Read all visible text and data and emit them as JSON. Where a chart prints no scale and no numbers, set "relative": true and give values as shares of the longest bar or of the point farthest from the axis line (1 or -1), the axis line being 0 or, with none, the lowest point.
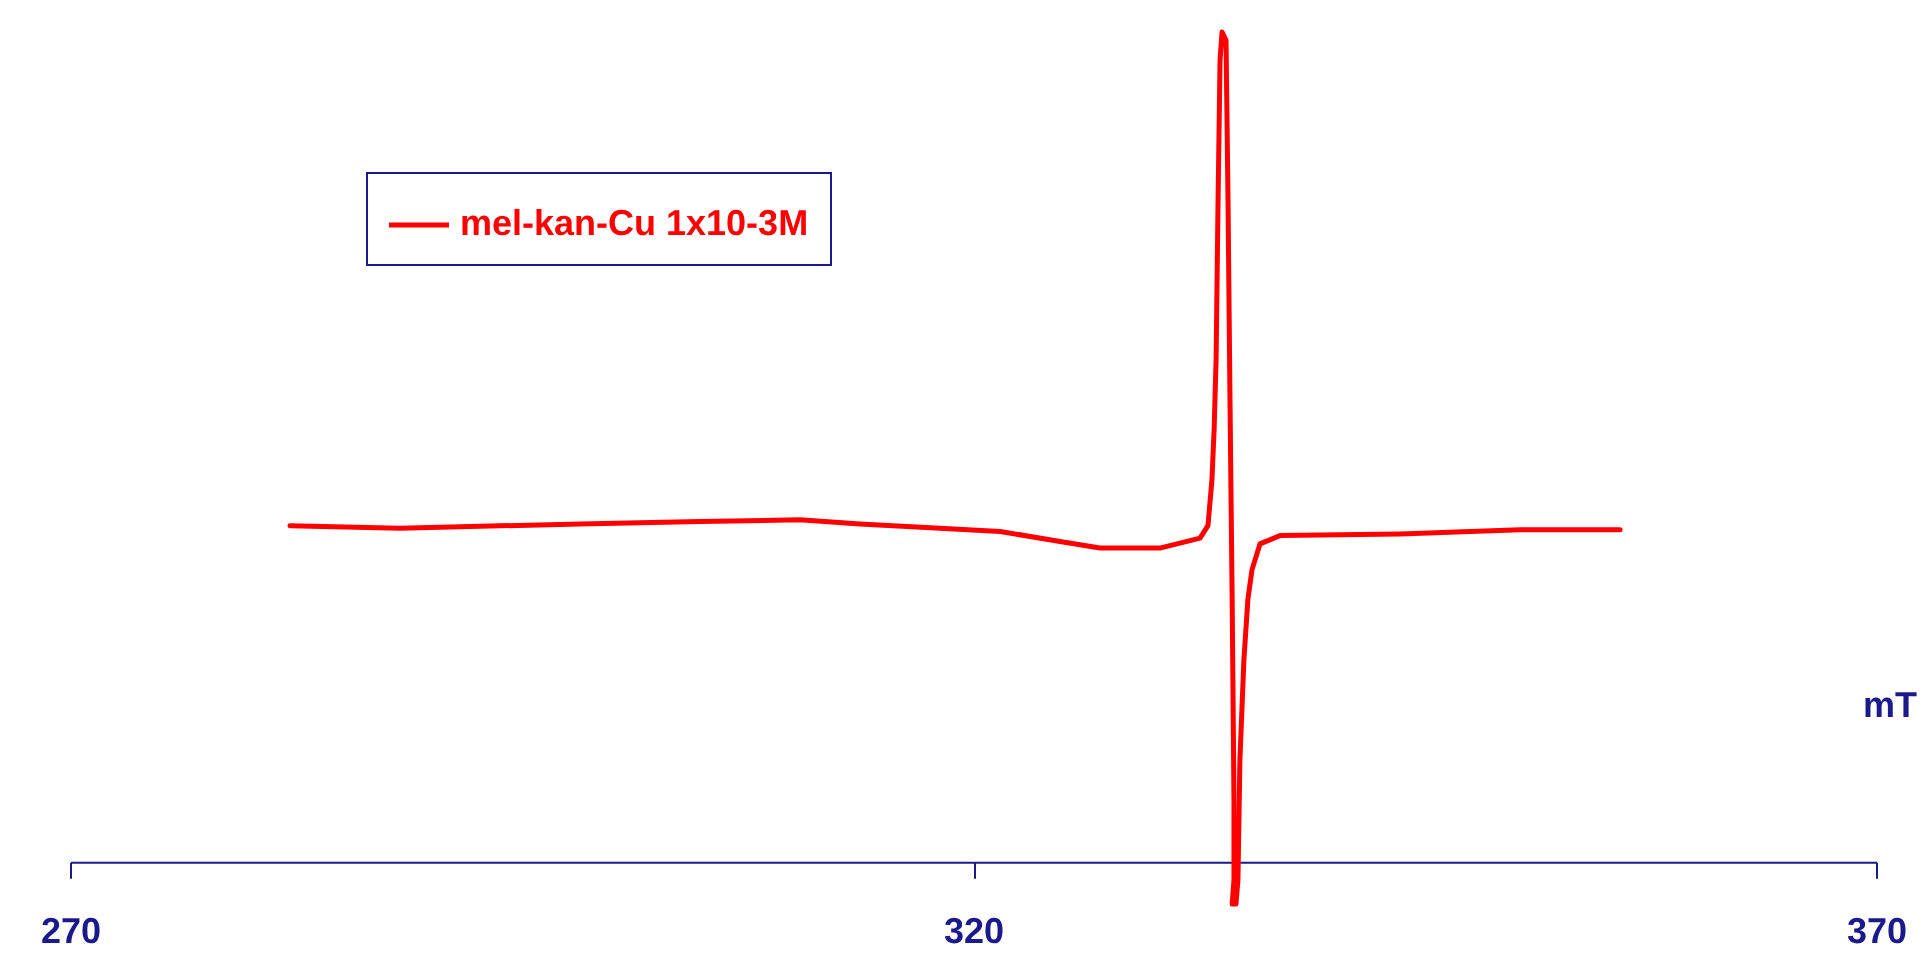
{
  "chart_data": {
    "type": "line",
    "relative": true,
    "xlabel": "mT",
    "xlim": [
      270,
      370
    ],
    "xticks": [
      270,
      320,
      370
    ],
    "legend": "top left",
    "grid": false,
    "marker": "none",
    "line_style": "solid",
    "series": [
      {
        "name": "mel-kan-Cu 1x10-3M",
        "color": "#ff0000",
        "x": [
          282.18,
          288.27,
          298.24,
          304.88,
          310.42,
          313.74,
          318.17,
          321.5,
          324.82,
          327.03,
          330.35,
          332.57,
          333.01,
          333.23,
          333.35,
          333.46,
          333.57,
          333.68,
          333.79,
          334.01,
          334.12,
          334.23,
          334.35,
          334.45,
          334.45,
          334.35,
          334.56,
          334.67,
          334.78,
          335.0,
          335.22,
          335.45,
          335.89,
          337.0,
          343.64,
          350.29,
          355.83
        ],
        "values": [
          0.405,
          0.402,
          0.407,
          0.41,
          0.412,
          0.407,
          0.402,
          0.398,
          0.386,
          0.378,
          0.378,
          0.39,
          0.405,
          0.46,
          0.52,
          0.605,
          0.798,
          0.966,
          1,
          0.99,
          0.798,
          0.557,
          0.316,
          0.075,
          -0.022,
          -0.051,
          -0.051,
          -0.022,
          0.123,
          0.243,
          0.316,
          0.352,
          0.383,
          0.393,
          0.395,
          0.4,
          0.4
        ]
      }
    ]
  }
}
